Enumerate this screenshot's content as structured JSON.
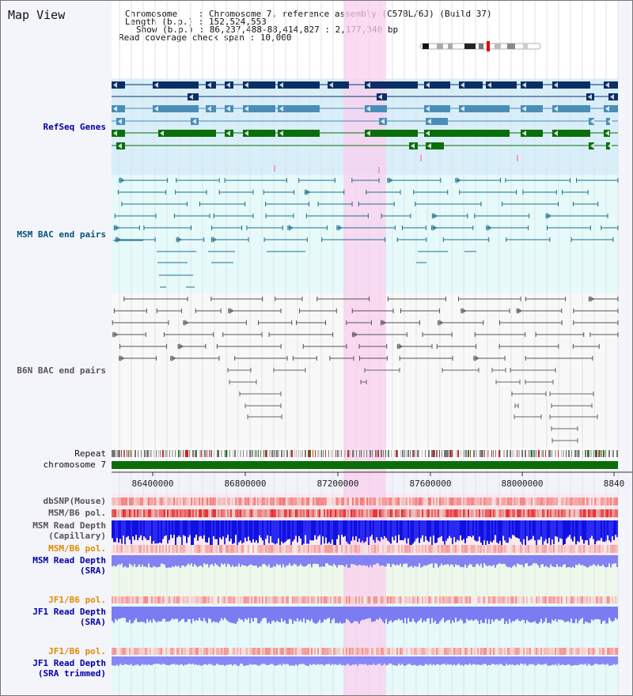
{
  "title": "Map View",
  "header": {
    "chromosome": "Chromosome    : Chromosome 7, reference assembly (C57BL/6J) (Build 37)",
    "length": "Length (b.p.) : 152,524,553",
    "show": "Show (b.p.) : 86,237,488-88,414,827 : 2,177,340 bp",
    "coverage": "Read coverage check span : 10,000"
  },
  "labels": {
    "refseq": "RefSeq Genes",
    "msm_bac": "MSM BAC end pairs",
    "b6n_bac": "B6N BAC end pairs",
    "repeat": "Repeat",
    "chromosome": "chromosome 7",
    "dbsnp": "dbSNP(Mouse)",
    "msm_b6_pol": "MSM/B6 pol.",
    "msm_depth_cap_1": "MSM Read Depth",
    "msm_depth_cap_2": "(Capillary)",
    "msm_b6_pol_2": "MSM/B6 pol.",
    "msm_depth_sra_1": "MSM Read Depth",
    "msm_depth_sra_2": "(SRA)",
    "jf1_b6_pol": "JF1/B6 pol.",
    "jf1_depth_sra_1": "JF1 Read Depth",
    "jf1_depth_sra_2": "(SRA)",
    "jf1_b6_pol_2": "JF1/B6 pol.",
    "jf1_trim_1": "JF1 Read Depth",
    "jf1_trim_2": "(SRA trimmed)"
  },
  "axis": {
    "ticks": [
      "86400000",
      "86800000",
      "87200000",
      "87600000",
      "88000000",
      "8840"
    ]
  },
  "colors": {
    "refseq_label": "#0000aa",
    "msm_label": "#005577",
    "b6n_label": "#555555",
    "gene_dark": "#0a2f66",
    "gene_mid": "#4a8eb7",
    "gene_green": "#0a6e0a",
    "highlight": "#f9cfee",
    "depth_blue": "#1010e0",
    "depth_light": "#7f7ff5",
    "orange_label": "#e08a00"
  }
}
